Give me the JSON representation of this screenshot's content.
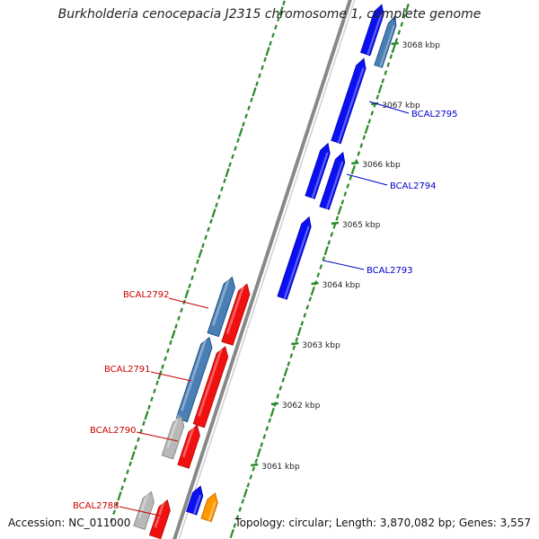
{
  "title": "Burkholderia cenocepacia J2315 chromosome 1, complete genome",
  "footer": {
    "accession": "Accession: NC_011000",
    "genome_info": "Topology: circular; Length: 3,870,082 bp; Genes: 3,557"
  },
  "scale_ticks": [
    {
      "label": "3061 kbp",
      "pos": 3061
    },
    {
      "label": "3062 kbp",
      "pos": 3062
    },
    {
      "label": "3063 kbp",
      "pos": 3063
    },
    {
      "label": "3064 kbp",
      "pos": 3064
    },
    {
      "label": "3065 kbp",
      "pos": 3065
    },
    {
      "label": "3066 kbp",
      "pos": 3066
    },
    {
      "label": "3067 kbp",
      "pos": 3067
    },
    {
      "label": "3068 kbp",
      "pos": 3068
    }
  ],
  "gene_labels": {
    "forward": [
      "BCAL2793",
      "BCAL2794",
      "BCAL2795"
    ],
    "reverse": [
      "BCAL2788",
      "BCAL2790",
      "BCAL2791",
      "BCAL2792"
    ]
  },
  "colors": {
    "forward_label": "#0000cc",
    "reverse_label": "#cc0000",
    "blue": "#0a10f0",
    "red": "#f01010",
    "steelblue": "#4a7fb5",
    "gray": "#b8b8b8",
    "orange": "#ff9900",
    "tick": "#2a8a2a",
    "axis": "#888888"
  }
}
